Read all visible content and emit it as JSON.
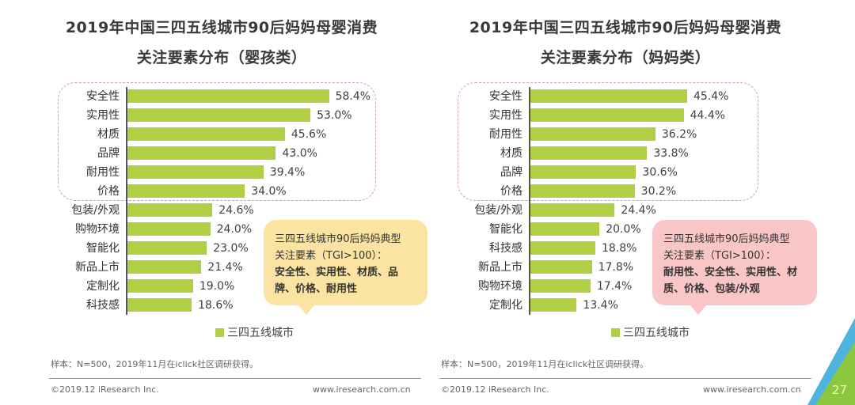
{
  "colors": {
    "bar": "#b0cf45",
    "callout_left_bg": "#fbe3a1",
    "callout_right_bg": "#f8c6c6",
    "dash_border": "#d9a0a8",
    "corner_green": "#8dc63f",
    "corner_blue": "#4fb3e0"
  },
  "left": {
    "title_line1": "2019年中国三四五线城市90后妈妈母婴消费",
    "title_line2": "关注要素分布（婴孩类）",
    "legend": "三四五线城市",
    "callout_line1": "三四五线城市90后妈妈典型",
    "callout_line2": "关注要素（TGI>100）：",
    "callout_bold": "安全性、实用性、材质、品牌、价格、耐用性",
    "sample": "样本：N=500，2019年11月在iclick社区调研获得。",
    "copyright": "©2019.12 iResearch Inc.",
    "url": "www.iresearch.com.cn"
  },
  "right": {
    "title_line1": "2019年中国三四五线城市90后妈妈母婴消费",
    "title_line2": "关注要素分布（妈妈类）",
    "legend": "三四五线城市",
    "callout_line1": "三四五线城市90后妈妈典型",
    "callout_line2": "关注要素（TGI>100）：",
    "callout_bold": "耐用性、安全性、实用性、材质、价格、包装/外观",
    "sample": "样本：N=500，2019年11月在iclick社区调研获得。",
    "copyright": "©2019.12 iResearch Inc.",
    "url": "www.iresearch.com.cn"
  },
  "page_number": "27",
  "chart_data": [
    {
      "type": "bar",
      "orientation": "horizontal",
      "title": "2019年中国三四五线城市90后妈妈母婴消费关注要素分布（婴孩类）",
      "xlabel": "",
      "ylabel": "",
      "unit": "%",
      "legend": [
        "三四五线城市"
      ],
      "legend_position": "bottom",
      "grid": false,
      "xlim": [
        0,
        60
      ],
      "highlighted_top_n": 6,
      "categories": [
        "安全性",
        "实用性",
        "材质",
        "品牌",
        "耐用性",
        "价格",
        "包装/外观",
        "购物环境",
        "智能化",
        "新品上市",
        "定制化",
        "科技感"
      ],
      "values": [
        58.4,
        53.0,
        45.6,
        43.0,
        39.4,
        34.0,
        24.6,
        24.0,
        23.0,
        21.4,
        19.0,
        18.6
      ],
      "labels": [
        "58.4%",
        "53.0%",
        "45.6%",
        "43.0%",
        "39.4%",
        "34.0%",
        "24.6%",
        "24.0%",
        "23.0%",
        "21.4%",
        "19.0%",
        "18.6%"
      ]
    },
    {
      "type": "bar",
      "orientation": "horizontal",
      "title": "2019年中国三四五线城市90后妈妈母婴消费关注要素分布（妈妈类）",
      "xlabel": "",
      "ylabel": "",
      "unit": "%",
      "legend": [
        "三四五线城市"
      ],
      "legend_position": "bottom",
      "grid": false,
      "xlim": [
        0,
        60
      ],
      "highlighted_top_n": 6,
      "categories": [
        "安全性",
        "实用性",
        "耐用性",
        "材质",
        "品牌",
        "价格",
        "包装/外观",
        "智能化",
        "科技感",
        "新品上市",
        "购物环境",
        "定制化"
      ],
      "values": [
        45.4,
        44.4,
        36.2,
        33.8,
        30.6,
        30.2,
        24.4,
        20.0,
        18.8,
        17.8,
        17.4,
        13.4
      ],
      "labels": [
        "45.4%",
        "44.4%",
        "36.2%",
        "33.8%",
        "30.6%",
        "30.2%",
        "24.4%",
        "20.0%",
        "18.8%",
        "17.8%",
        "17.4%",
        "13.4%"
      ]
    }
  ]
}
